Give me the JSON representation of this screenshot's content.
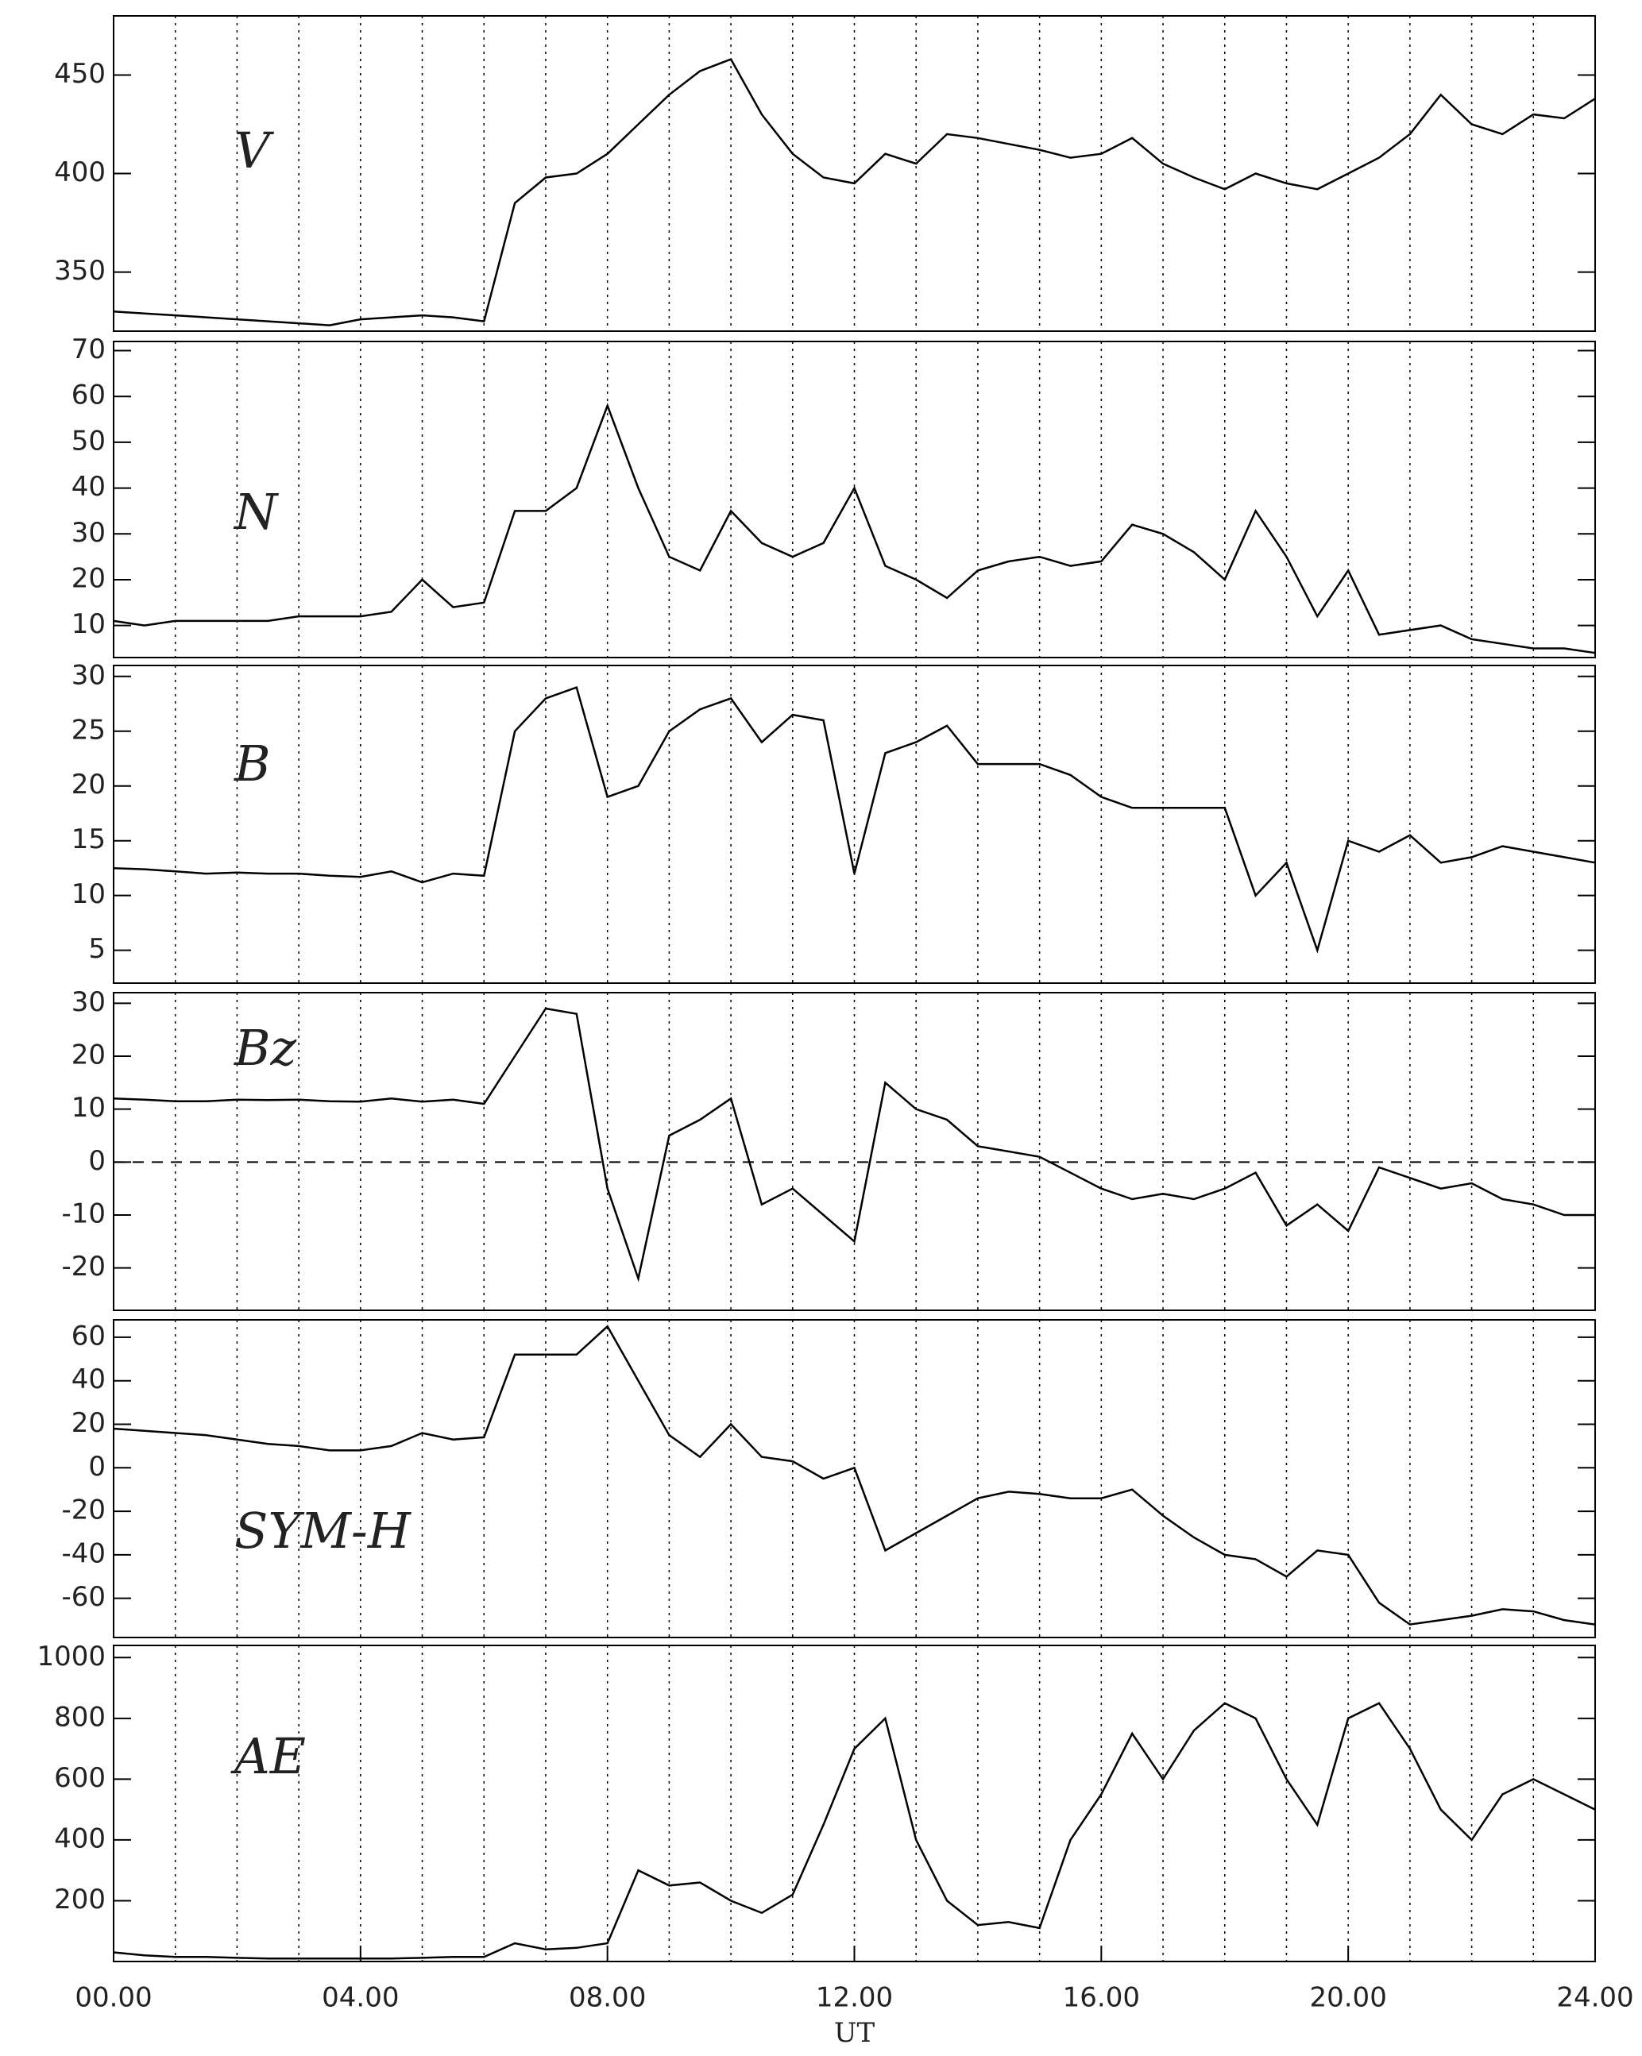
{
  "chart_data": [
    {
      "type": "line",
      "label": "V",
      "color": "#000000",
      "xlim": [
        0,
        24
      ],
      "xgrid": [
        1,
        2,
        3,
        4,
        5,
        6,
        7,
        8,
        9,
        10,
        11,
        12,
        13,
        14,
        15,
        16,
        17,
        18,
        19,
        20,
        21,
        22,
        23
      ],
      "grid": true,
      "x": [
        0,
        0.5,
        1,
        1.5,
        2,
        2.5,
        3,
        3.5,
        4,
        4.5,
        5,
        5.5,
        6,
        6.5,
        7,
        7.5,
        8,
        8.5,
        9,
        9.5,
        10,
        10.5,
        11,
        11.5,
        12,
        12.5,
        13,
        13.5,
        14,
        14.5,
        15,
        15.5,
        16,
        16.5,
        17,
        17.5,
        18,
        18.5,
        19,
        19.5,
        20,
        20.5,
        21,
        21.5,
        22,
        22.5,
        23,
        23.5,
        24
      ],
      "values": [
        330,
        329,
        328,
        327,
        326,
        325,
        324,
        323,
        326,
        327,
        328,
        327,
        325,
        385,
        398,
        400,
        410,
        425,
        440,
        452,
        458,
        430,
        410,
        398,
        395,
        410,
        405,
        420,
        418,
        415,
        412,
        408,
        410,
        418,
        405,
        398,
        392,
        400,
        395,
        392,
        400,
        408,
        420,
        440,
        425,
        420,
        430,
        428,
        438
      ],
      "ylim": [
        320,
        480
      ],
      "yticks": [
        350,
        400,
        450
      ]
    },
    {
      "type": "line",
      "label": "N",
      "color": "#000000",
      "xlim": [
        0,
        24
      ],
      "xgrid": [
        1,
        2,
        3,
        4,
        5,
        6,
        7,
        8,
        9,
        10,
        11,
        12,
        13,
        14,
        15,
        16,
        17,
        18,
        19,
        20,
        21,
        22,
        23
      ],
      "grid": true,
      "x": [
        0,
        0.5,
        1,
        1.5,
        2,
        2.5,
        3,
        3.5,
        4,
        4.5,
        5,
        5.5,
        6,
        6.5,
        7,
        7.5,
        8,
        8.5,
        9,
        9.5,
        10,
        10.5,
        11,
        11.5,
        12,
        12.5,
        13,
        13.5,
        14,
        14.5,
        15,
        15.5,
        16,
        16.5,
        17,
        17.5,
        18,
        18.5,
        19,
        19.5,
        20,
        20.5,
        21,
        21.5,
        22,
        22.5,
        23,
        23.5,
        24
      ],
      "values": [
        11,
        10,
        11,
        11,
        11,
        11,
        12,
        12,
        12,
        13,
        20,
        14,
        15,
        35,
        35,
        40,
        58,
        40,
        25,
        22,
        35,
        28,
        25,
        28,
        40,
        23,
        20,
        16,
        22,
        24,
        25,
        23,
        24,
        32,
        30,
        26,
        20,
        35,
        25,
        12,
        22,
        8,
        9,
        10,
        7,
        6,
        5,
        5,
        4
      ],
      "ylim": [
        3,
        72
      ],
      "yticks": [
        10,
        20,
        30,
        40,
        50,
        60,
        70
      ]
    },
    {
      "type": "line",
      "label": "B",
      "color": "#000000",
      "xlim": [
        0,
        24
      ],
      "xgrid": [
        1,
        2,
        3,
        4,
        5,
        6,
        7,
        8,
        9,
        10,
        11,
        12,
        13,
        14,
        15,
        16,
        17,
        18,
        19,
        20,
        21,
        22,
        23
      ],
      "grid": true,
      "x": [
        0,
        0.5,
        1,
        1.5,
        2,
        2.5,
        3,
        3.5,
        4,
        4.5,
        5,
        5.5,
        6,
        6.5,
        7,
        7.5,
        8,
        8.5,
        9,
        9.5,
        10,
        10.5,
        11,
        11.5,
        12,
        12.5,
        13,
        13.5,
        14,
        14.5,
        15,
        15.5,
        16,
        16.5,
        17,
        17.5,
        18,
        18.5,
        19,
        19.5,
        20,
        20.5,
        21,
        21.5,
        22,
        22.5,
        23,
        23.5,
        24
      ],
      "values": [
        12.5,
        12.4,
        12.2,
        12,
        12.1,
        12,
        12,
        11.8,
        11.7,
        12.2,
        11.2,
        12,
        11.8,
        25,
        28,
        29,
        19,
        20,
        25,
        27,
        28,
        24,
        26.5,
        26,
        12,
        23,
        24,
        25.5,
        22,
        22,
        22,
        21,
        19,
        18,
        18,
        18,
        18,
        10,
        13,
        5,
        15,
        14,
        15.5,
        13,
        13.5,
        14.5,
        14,
        13.5,
        13
      ],
      "ylim": [
        2,
        31
      ],
      "yticks": [
        5,
        10,
        15,
        20,
        25,
        30
      ]
    },
    {
      "type": "line",
      "label": "Bz",
      "color": "#000000",
      "xlim": [
        0,
        24
      ],
      "xgrid": [
        1,
        2,
        3,
        4,
        5,
        6,
        7,
        8,
        9,
        10,
        11,
        12,
        13,
        14,
        15,
        16,
        17,
        18,
        19,
        20,
        21,
        22,
        23
      ],
      "grid": true,
      "zero_line": true,
      "x": [
        0,
        0.5,
        1,
        1.5,
        2,
        2.5,
        3,
        3.5,
        4,
        4.5,
        5,
        5.5,
        6,
        6.5,
        7,
        7.5,
        8,
        8.5,
        9,
        9.5,
        10,
        10.5,
        11,
        11.5,
        12,
        12.5,
        13,
        13.5,
        14,
        14.5,
        15,
        15.5,
        16,
        16.5,
        17,
        17.5,
        18,
        18.5,
        19,
        19.5,
        20,
        20.5,
        21,
        21.5,
        22,
        22.5,
        23,
        23.5,
        24
      ],
      "values": [
        12,
        11.8,
        11.5,
        11.5,
        11.8,
        11.7,
        11.8,
        11.5,
        11.4,
        12,
        11.4,
        11.8,
        11,
        20,
        29,
        28,
        -5,
        -22,
        5,
        8,
        12,
        -8,
        -5,
        -10,
        -15,
        15,
        10,
        8,
        3,
        2,
        1,
        -2,
        -5,
        -7,
        -6,
        -7,
        -5,
        -2,
        -12,
        -8,
        -13,
        -1,
        -3,
        -5,
        -4,
        -7,
        -8,
        -10,
        -10
      ],
      "ylim": [
        -28,
        32
      ],
      "yticks": [
        -20,
        -10,
        0,
        10,
        20,
        30
      ]
    },
    {
      "type": "line",
      "label": "SYM-H",
      "color": "#000000",
      "xlim": [
        0,
        24
      ],
      "xgrid": [
        1,
        2,
        3,
        4,
        5,
        6,
        7,
        8,
        9,
        10,
        11,
        12,
        13,
        14,
        15,
        16,
        17,
        18,
        19,
        20,
        21,
        22,
        23
      ],
      "grid": true,
      "x": [
        0,
        0.5,
        1,
        1.5,
        2,
        2.5,
        3,
        3.5,
        4,
        4.5,
        5,
        5.5,
        6,
        6.5,
        7,
        7.5,
        8,
        8.5,
        9,
        9.5,
        10,
        10.5,
        11,
        11.5,
        12,
        12.5,
        13,
        13.5,
        14,
        14.5,
        15,
        15.5,
        16,
        16.5,
        17,
        17.5,
        18,
        18.5,
        19,
        19.5,
        20,
        20.5,
        21,
        21.5,
        22,
        22.5,
        23,
        23.5,
        24
      ],
      "values": [
        18,
        17,
        16,
        15,
        13,
        11,
        10,
        8,
        8,
        10,
        16,
        13,
        14,
        52,
        52,
        52,
        65,
        40,
        15,
        5,
        20,
        5,
        3,
        -5,
        0,
        -38,
        -30,
        -22,
        -14,
        -11,
        -12,
        -14,
        -14,
        -10,
        -22,
        -32,
        -40,
        -42,
        -50,
        -38,
        -40,
        -62,
        -72,
        -70,
        -68,
        -65,
        -66,
        -70,
        -72
      ],
      "ylim": [
        -78,
        68
      ],
      "yticks": [
        -60,
        -40,
        -20,
        0,
        20,
        40,
        60
      ]
    },
    {
      "type": "line",
      "label": "AE",
      "color": "#000000",
      "xlim": [
        0,
        24
      ],
      "xgrid": [
        1,
        2,
        3,
        4,
        5,
        6,
        7,
        8,
        9,
        10,
        11,
        12,
        13,
        14,
        15,
        16,
        17,
        18,
        19,
        20,
        21,
        22,
        23
      ],
      "grid": true,
      "x": [
        0,
        0.5,
        1,
        1.5,
        2,
        2.5,
        3,
        3.5,
        4,
        4.5,
        5,
        5.5,
        6,
        6.5,
        7,
        7.5,
        8,
        8.5,
        9,
        9.5,
        10,
        10.5,
        11,
        11.5,
        12,
        12.5,
        13,
        13.5,
        14,
        14.5,
        15,
        15.5,
        16,
        16.5,
        17,
        17.5,
        18,
        18.5,
        19,
        19.5,
        20,
        20.5,
        21,
        21.5,
        22,
        22.5,
        23,
        23.5,
        24
      ],
      "values": [
        30,
        20,
        15,
        15,
        12,
        10,
        10,
        10,
        10,
        10,
        12,
        15,
        15,
        60,
        40,
        45,
        60,
        300,
        250,
        260,
        200,
        160,
        220,
        450,
        700,
        800,
        400,
        200,
        120,
        130,
        110,
        400,
        550,
        750,
        600,
        760,
        850,
        800,
        600,
        450,
        800,
        850,
        700,
        500,
        400,
        550,
        600,
        550,
        500
      ],
      "ylim": [
        0,
        1040
      ],
      "yticks": [
        200,
        400,
        600,
        800,
        1000
      ],
      "xticks": [
        {
          "value": 0,
          "label": "00.00"
        },
        {
          "value": 4,
          "label": "04.00"
        },
        {
          "value": 8,
          "label": "08.00"
        },
        {
          "value": 12,
          "label": "12.00"
        },
        {
          "value": 16,
          "label": "16.00"
        },
        {
          "value": 20,
          "label": "20.00"
        },
        {
          "value": 24,
          "label": "24.00"
        }
      ],
      "xlabel": "UT"
    }
  ]
}
